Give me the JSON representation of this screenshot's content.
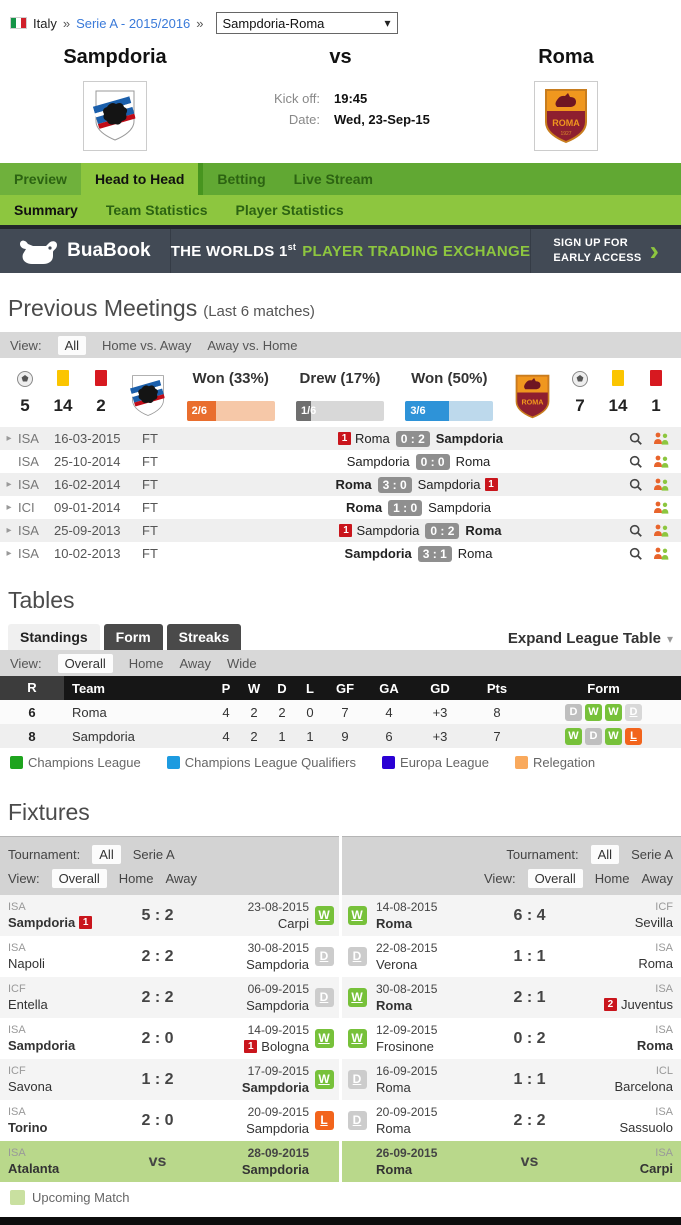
{
  "icons": {
    "expand_arrow": "▸",
    "select_caret": "▾",
    "expand_caret": "▾"
  },
  "breadcrumb": {
    "country": "Italy",
    "sep": "»",
    "league": "Serie A - 2015/2016",
    "match": "Sampdoria-Roma"
  },
  "header": {
    "home": "Sampdoria",
    "vs": "vs",
    "away": "Roma",
    "kickoff_label": "Kick off:",
    "kickoff_value": "19:45",
    "date_label": "Date:",
    "date_value": "Wed, 23-Sep-15",
    "roma_name": "ROMA",
    "roma_year": "1927"
  },
  "tabs": {
    "main": [
      "Preview",
      "Head to Head",
      "Betting",
      "Live Stream"
    ],
    "sub": [
      "Summary",
      "Team Statistics",
      "Player Statistics"
    ]
  },
  "banner": {
    "brand": "BuaBook",
    "tag_white": "THE WORLDS 1",
    "tag_sup": "st",
    "tag_green": "PLAYER TRADING EXCHANGE",
    "cta1": "SIGN UP FOR",
    "cta2": "EARLY ACCESS",
    "chevron": "›"
  },
  "meetings": {
    "title": "Previous Meetings",
    "subtitle": "(Last 6 matches)",
    "view_label": "View:",
    "views": [
      "All",
      "Home vs. Away",
      "Away vs. Home"
    ],
    "home_stats": {
      "goals": "5",
      "yellows": "14",
      "reds": "2"
    },
    "away_stats": {
      "goals": "7",
      "yellows": "14",
      "reds": "1"
    },
    "bars": [
      {
        "label": "Won (33%)",
        "value": "2/6",
        "pct": 33,
        "fill": "#e96e2e",
        "track": "#f6c8a8"
      },
      {
        "label": "Drew (17%)",
        "value": "1/6",
        "pct": 17,
        "fill": "#6f6f6f",
        "track": "#d8d8d8"
      },
      {
        "label": "Won (50%)",
        "value": "3/6",
        "pct": 50,
        "fill": "#2e93d8",
        "track": "#bdd9ec"
      }
    ],
    "rows": [
      {
        "league": "ISA",
        "date": "16-03-2015",
        "status": "FT",
        "home": "Roma",
        "home_card": "1",
        "score": "0 : 2",
        "away": "Sampdoria"
      },
      {
        "league": "ISA",
        "date": "25-10-2014",
        "status": "FT",
        "home": "Sampdoria",
        "score": "0 : 0",
        "away": "Roma"
      },
      {
        "league": "ISA",
        "date": "16-02-2014",
        "status": "FT",
        "home": "Roma",
        "score": "3 : 0",
        "away": "Sampdoria",
        "away_card": "1"
      },
      {
        "league": "ICI",
        "date": "09-01-2014",
        "status": "FT",
        "home": "Roma",
        "score": "1 : 0",
        "away": "Sampdoria"
      },
      {
        "league": "ISA",
        "date": "25-09-2013",
        "status": "FT",
        "home": "Sampdoria",
        "home_card": "1",
        "score": "0 : 2",
        "away": "Roma"
      },
      {
        "league": "ISA",
        "date": "10-02-2013",
        "status": "FT",
        "home": "Sampdoria",
        "score": "3 : 1",
        "away": "Roma"
      }
    ]
  },
  "tables": {
    "title": "Tables",
    "tabs": [
      "Standings",
      "Form",
      "Streaks"
    ],
    "expand": "Expand League Table",
    "view_label": "View:",
    "views": [
      "Overall",
      "Home",
      "Away",
      "Wide"
    ],
    "columns": [
      "R",
      "Team",
      "P",
      "W",
      "D",
      "L",
      "GF",
      "GA",
      "GD",
      "Pts",
      "Form"
    ],
    "rows": [
      {
        "rank": "6",
        "team": "Roma",
        "p": "4",
        "w": "2",
        "d": "2",
        "l": "0",
        "gf": "7",
        "ga": "4",
        "gd": "+3",
        "pts": "8",
        "form": [
          "D",
          "W",
          "W",
          "D"
        ]
      },
      {
        "rank": "8",
        "team": "Sampdoria",
        "p": "4",
        "w": "2",
        "d": "1",
        "l": "1",
        "gf": "9",
        "ga": "6",
        "gd": "+3",
        "pts": "7",
        "form": [
          "W",
          "D",
          "W",
          "L"
        ]
      }
    ],
    "legend": [
      {
        "label": "Champions League",
        "color": "#1ea41e"
      },
      {
        "label": "Champions League Qualifiers",
        "color": "#1d9be0"
      },
      {
        "label": "Europa League",
        "color": "#2a00d4"
      },
      {
        "label": "Relegation",
        "color": "#f9a95c"
      }
    ]
  },
  "fixtures": {
    "title": "Fixtures",
    "tournament_label": "Tournament:",
    "tournaments": [
      "All",
      "Serie A"
    ],
    "view_label": "View:",
    "views": [
      "Overall",
      "Home",
      "Away"
    ],
    "left": [
      {
        "league": "ISA",
        "team1": "Sampdoria",
        "team1_card": "1",
        "score": "5 : 2",
        "date": "23-08-2015",
        "team2": "Carpi",
        "result": "W"
      },
      {
        "league": "ISA",
        "team1": "Napoli",
        "score": "2 : 2",
        "date": "30-08-2015",
        "team2": "Sampdoria",
        "result": "D"
      },
      {
        "league": "ICF",
        "team1": "Entella",
        "score": "2 : 2",
        "date": "06-09-2015",
        "team2": "Sampdoria",
        "result": "D"
      },
      {
        "league": "ISA",
        "team1": "Sampdoria",
        "score": "2 : 0",
        "date": "14-09-2015",
        "team2": "Bologna",
        "team2_card": "1",
        "result": "W"
      },
      {
        "league": "ICF",
        "team1": "Savona",
        "score": "1 : 2",
        "date": "17-09-2015",
        "team2": "Sampdoria",
        "result": "W"
      },
      {
        "league": "ISA",
        "team1": "Torino",
        "score": "2 : 0",
        "date": "20-09-2015",
        "team2": "Sampdoria",
        "result": "L"
      },
      {
        "league": "ISA",
        "team1": "Atalanta",
        "score": "vs",
        "date": "28-09-2015",
        "team2": "Sampdoria"
      }
    ],
    "right": [
      {
        "result": "W",
        "date": "14-08-2015",
        "team1": "Roma",
        "score": "6 : 4",
        "league": "ICF",
        "team2": "Sevilla"
      },
      {
        "result": "D",
        "date": "22-08-2015",
        "team1": "Verona",
        "score": "1 : 1",
        "league": "ISA",
        "team2": "Roma"
      },
      {
        "result": "W",
        "date": "30-08-2015",
        "team1": "Roma",
        "score": "2 : 1",
        "league": "ISA",
        "team2": "Juventus",
        "team2_card": "2"
      },
      {
        "result": "W",
        "date": "12-09-2015",
        "team1": "Frosinone",
        "score": "0 : 2",
        "league": "ISA",
        "team2": "Roma"
      },
      {
        "result": "D",
        "date": "16-09-2015",
        "team1": "Roma",
        "score": "1 : 1",
        "league": "ICL",
        "team2": "Barcelona"
      },
      {
        "result": "D",
        "date": "20-09-2015",
        "team1": "Roma",
        "score": "2 : 2",
        "league": "ISA",
        "team2": "Sassuolo"
      },
      {
        "date": "26-09-2015",
        "team1": "Roma",
        "score": "vs",
        "league": "ISA",
        "team2": "Carpi"
      }
    ],
    "legend": "Upcoming Match"
  }
}
